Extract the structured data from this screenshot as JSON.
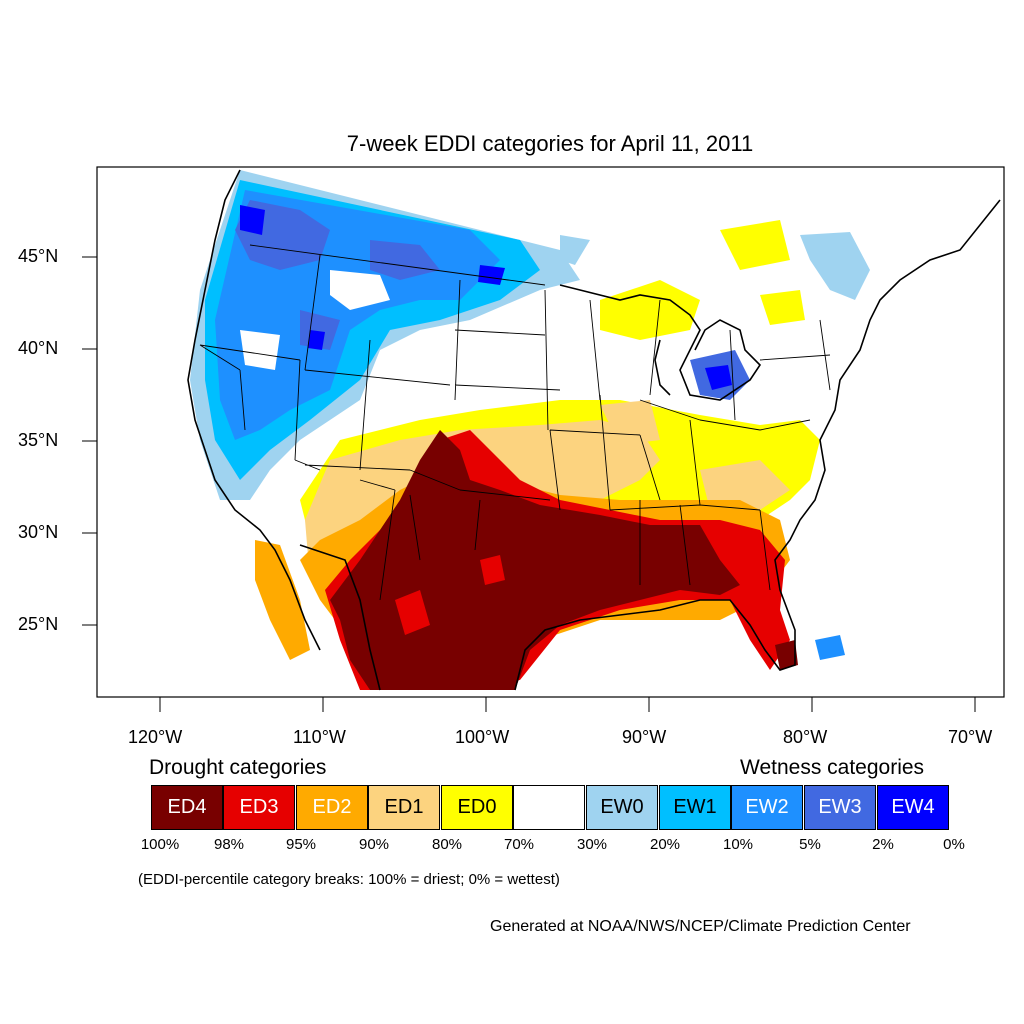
{
  "title": "7-week EDDI categories for April 11, 2011",
  "axes": {
    "lat_labels": [
      "45°N",
      "40°N",
      "35°N",
      "30°N",
      "25°N"
    ],
    "lon_labels": [
      "120°W",
      "110°W",
      "100°W",
      "90°W",
      "80°W",
      "70°W"
    ]
  },
  "legend": {
    "drought_heading": "Drought categories",
    "wetness_heading": "Wetness categories",
    "categories": [
      {
        "label": "ED4",
        "color": "#780000",
        "text_color": "#ffffff"
      },
      {
        "label": "ED3",
        "color": "#e60000",
        "text_color": "#ffffff"
      },
      {
        "label": "ED2",
        "color": "#ffaa00",
        "text_color": "#ffffff"
      },
      {
        "label": "ED1",
        "color": "#fcd37f",
        "text_color": "#000000"
      },
      {
        "label": "ED0",
        "color": "#ffff00",
        "text_color": "#000000"
      },
      {
        "label": "",
        "color": "#ffffff",
        "text_color": "#000000"
      },
      {
        "label": "EW0",
        "color": "#9fd3f0",
        "text_color": "#000000"
      },
      {
        "label": "EW1",
        "color": "#00bfff",
        "text_color": "#000000"
      },
      {
        "label": "EW2",
        "color": "#1e90ff",
        "text_color": "#ffffff"
      },
      {
        "label": "EW3",
        "color": "#4169e1",
        "text_color": "#ffffff"
      },
      {
        "label": "EW4",
        "color": "#0000ff",
        "text_color": "#ffffff"
      }
    ],
    "breaks": [
      "100%",
      "98%",
      "95%",
      "90%",
      "80%",
      "70%",
      "30%",
      "20%",
      "10%",
      "5%",
      "2%",
      "0%"
    ],
    "note": "(EDDI-percentile category breaks: 100% = driest; 0% = wettest)"
  },
  "credit": "Generated at NOAA/NWS/NCEP/Climate Prediction Center"
}
